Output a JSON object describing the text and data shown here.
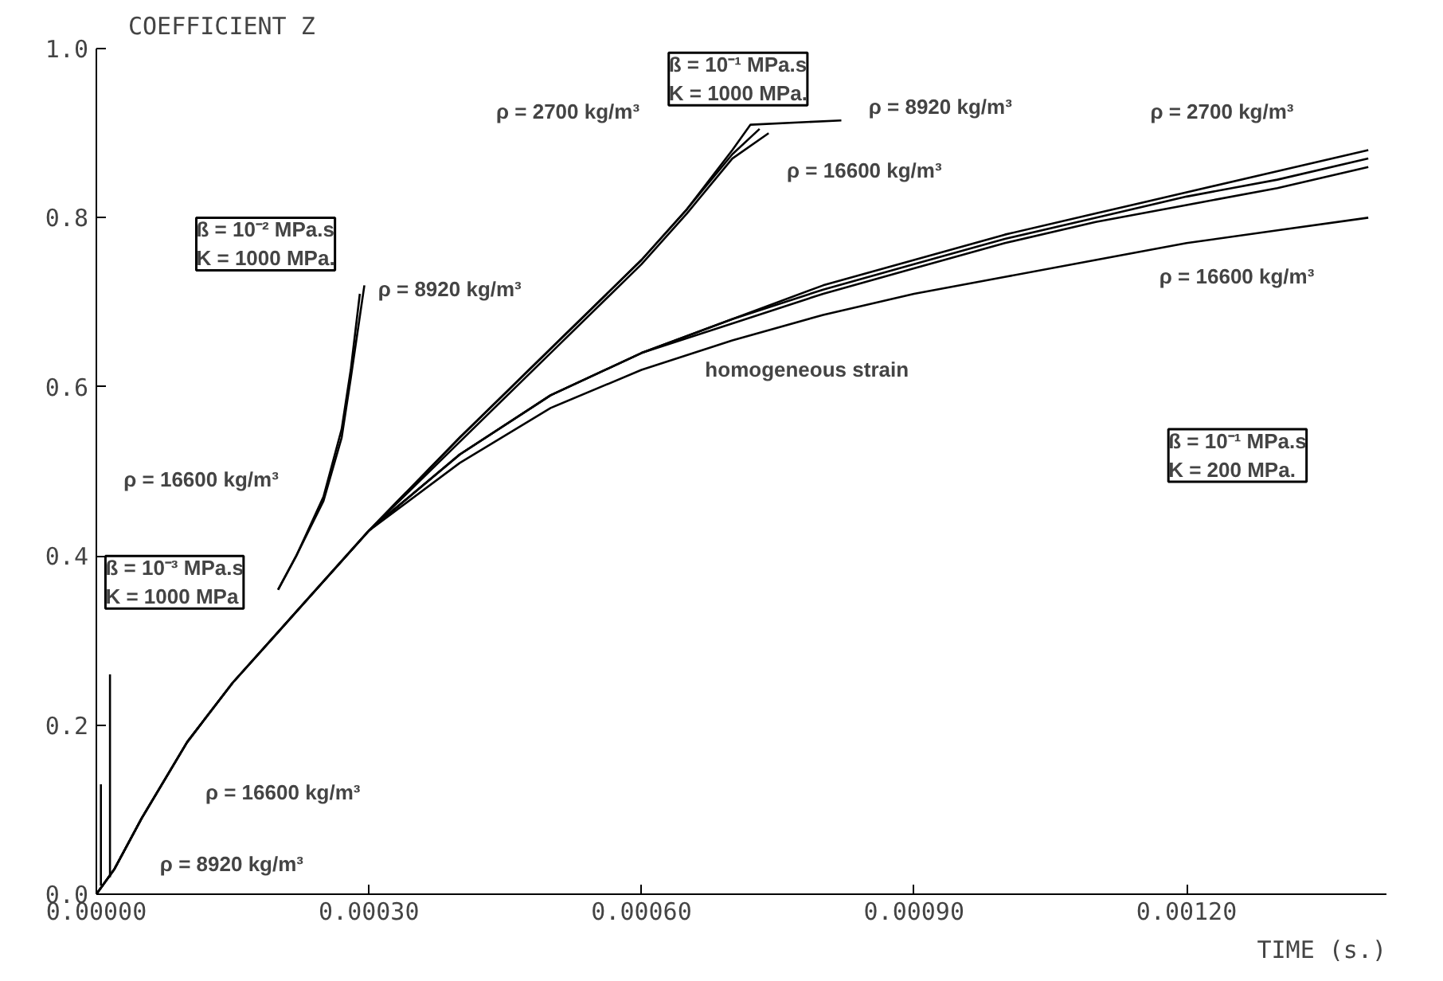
{
  "chart_data": {
    "type": "line",
    "xlabel": "TIME (s.)",
    "ylabel": "COEFFICIENT Z",
    "xlim": [
      0,
      0.00142
    ],
    "ylim": [
      0,
      1.0
    ],
    "xticks": [
      {
        "value": 0,
        "label": "0.00000"
      },
      {
        "value": 0.0003,
        "label": "0.00030"
      },
      {
        "value": 0.0006,
        "label": "0.00060"
      },
      {
        "value": 0.0009,
        "label": "0.00090"
      },
      {
        "value": 0.0012,
        "label": "0.00120"
      }
    ],
    "yticks": [
      {
        "value": 0,
        "label": "0.0"
      },
      {
        "value": 0.2,
        "label": "0.2"
      },
      {
        "value": 0.4,
        "label": "0.4"
      },
      {
        "value": 0.6,
        "label": "0.6"
      },
      {
        "value": 0.8,
        "label": "0.8"
      },
      {
        "value": 1.0,
        "label": "1.0"
      }
    ],
    "grid": false,
    "marker": "none",
    "line_style": "solid",
    "series": [
      {
        "color": "#000000",
        "x": [
          0,
          2e-05,
          5e-05,
          0.0001,
          0.00015,
          0.0002,
          0.0003,
          0.0004,
          0.0005,
          0.0006,
          0.0007,
          0.0008,
          0.0009,
          0.001,
          0.0011,
          0.0012,
          0.0013,
          0.0014
        ],
        "values": [
          0,
          0.03,
          0.09,
          0.18,
          0.25,
          0.31,
          0.43,
          0.52,
          0.59,
          0.64,
          0.68,
          0.72,
          0.75,
          0.78,
          0.805,
          0.83,
          0.855,
          0.88
        ]
      },
      {
        "color": "#000000",
        "x": [
          0,
          2e-05,
          5e-05,
          0.0001,
          0.00015,
          0.0002,
          0.0003,
          0.0004,
          0.0005,
          0.0006,
          0.0007,
          0.0008,
          0.0009,
          0.001,
          0.0011,
          0.0012,
          0.0013,
          0.0014
        ],
        "values": [
          0,
          0.03,
          0.09,
          0.18,
          0.25,
          0.31,
          0.43,
          0.52,
          0.59,
          0.64,
          0.68,
          0.715,
          0.745,
          0.775,
          0.8,
          0.825,
          0.845,
          0.87
        ]
      },
      {
        "color": "#000000",
        "x": [
          0,
          2e-05,
          5e-05,
          0.0001,
          0.00015,
          0.0002,
          0.0003,
          0.0004,
          0.0005,
          0.0006,
          0.0007,
          0.0008,
          0.0009,
          0.001,
          0.0011,
          0.0012,
          0.0013,
          0.0014
        ],
        "values": [
          0,
          0.03,
          0.09,
          0.18,
          0.25,
          0.31,
          0.43,
          0.52,
          0.59,
          0.64,
          0.675,
          0.71,
          0.74,
          0.77,
          0.795,
          0.815,
          0.835,
          0.86
        ]
      },
      {
        "color": "#000000",
        "x": [
          0,
          2e-05,
          5e-05,
          0.0001,
          0.00015,
          0.0002,
          0.0003,
          0.0004,
          0.0005,
          0.0006,
          0.0007,
          0.0008,
          0.0009,
          0.001,
          0.0011,
          0.0012,
          0.0013,
          0.0014
        ],
        "values": [
          0,
          0.03,
          0.09,
          0.18,
          0.25,
          0.31,
          0.43,
          0.51,
          0.575,
          0.62,
          0.655,
          0.685,
          0.71,
          0.73,
          0.75,
          0.77,
          0.785,
          0.8
        ]
      },
      {
        "color": "#000000",
        "x": [
          0.0003,
          0.0004,
          0.0005,
          0.0006,
          0.00065,
          0.0007,
          0.00072,
          0.00082
        ],
        "values": [
          0.43,
          0.54,
          0.645,
          0.75,
          0.81,
          0.88,
          0.91,
          0.915
        ]
      },
      {
        "color": "#000000",
        "x": [
          0.0003,
          0.0004,
          0.0005,
          0.0006,
          0.00065,
          0.0007,
          0.00073
        ],
        "values": [
          0.43,
          0.54,
          0.645,
          0.75,
          0.81,
          0.875,
          0.905
        ]
      },
      {
        "color": "#000000",
        "x": [
          0.0003,
          0.0004,
          0.0005,
          0.0006,
          0.00065,
          0.0007,
          0.00074
        ],
        "values": [
          0.43,
          0.535,
          0.64,
          0.745,
          0.805,
          0.87,
          0.9
        ]
      },
      {
        "color": "#000000",
        "x": [
          0.0002,
          0.00022,
          0.00025,
          0.00027,
          0.00028,
          0.00029
        ],
        "values": [
          0.36,
          0.4,
          0.47,
          0.55,
          0.62,
          0.71
        ]
      },
      {
        "color": "#000000",
        "x": [
          0.0002,
          0.00022,
          0.00025,
          0.00027,
          0.00028,
          0.000295
        ],
        "values": [
          0.36,
          0.4,
          0.465,
          0.54,
          0.61,
          0.72
        ]
      },
      {
        "color": "#000000",
        "x": [
          1.5e-05,
          1.5e-05
        ],
        "values": [
          0.02,
          0.26
        ]
      },
      {
        "color": "#000000",
        "x": [
          5e-06,
          5e-06
        ],
        "values": [
          0.01,
          0.13
        ]
      }
    ],
    "annotations": [
      "ß = 10⁻¹ MPa.s\nK = 1000 MPa.",
      "ρ = 2700 kg/m³",
      "ρ = 8920 kg/m³",
      "ρ = 16600 kg/m³",
      "ρ = 2700 kg/m³",
      "ρ = 16600 kg/m³",
      "homogeneous strain",
      "ß = 10⁻¹ MPa.s\nK = 200 MPa.",
      "ß = 10⁻² MPa.s\nK = 1000 MPa.",
      "ρ = 8920 kg/m³",
      "ρ = 16600 kg/m³",
      "ß = 10⁻³ MPa.s\nK = 1000 MPa",
      "ρ = 16600 kg/m³",
      "ρ = 8920 kg/m³"
    ]
  }
}
